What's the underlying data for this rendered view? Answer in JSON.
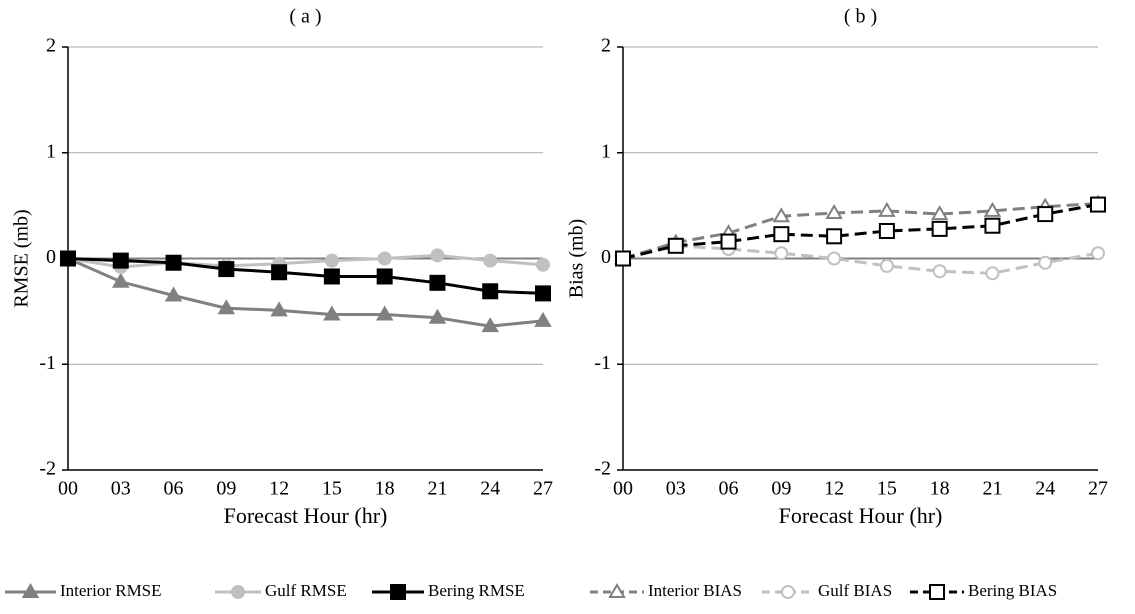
{
  "chart_data": [
    {
      "type": "line",
      "title": "( a )",
      "y_label": "RMSE (mb)",
      "x_label": "Forecast Hour (hr)",
      "categories": [
        "00",
        "03",
        "06",
        "09",
        "12",
        "15",
        "18",
        "21",
        "24",
        "27"
      ],
      "ylim": [
        -2,
        2
      ],
      "yticks": [
        -2,
        -1,
        0,
        1,
        2
      ],
      "grid": true,
      "series": [
        {
          "name": "Interior RMSE",
          "color": "#808080",
          "marker": "triangle",
          "filled": true,
          "dashed": false,
          "values": [
            0,
            -0.22,
            -0.35,
            -0.47,
            -0.49,
            -0.53,
            -0.53,
            -0.56,
            -0.64,
            -0.59
          ]
        },
        {
          "name": "Gulf RMSE",
          "color": "#c0c0c0",
          "marker": "circle",
          "filled": true,
          "dashed": false,
          "values": [
            0,
            -0.08,
            -0.04,
            -0.07,
            -0.05,
            -0.02,
            0.0,
            0.03,
            -0.02,
            -0.06
          ]
        },
        {
          "name": "Bering RMSE",
          "color": "#000000",
          "marker": "square",
          "filled": true,
          "dashed": false,
          "values": [
            0,
            -0.02,
            -0.04,
            -0.1,
            -0.13,
            -0.17,
            -0.17,
            -0.23,
            -0.31,
            -0.33
          ]
        }
      ]
    },
    {
      "type": "line",
      "title": "( b )",
      "y_label": "Bias (mb)",
      "x_label": "Forecast Hour (hr)",
      "categories": [
        "00",
        "03",
        "06",
        "09",
        "12",
        "15",
        "18",
        "21",
        "24",
        "27"
      ],
      "ylim": [
        -2,
        2
      ],
      "yticks": [
        -2,
        -1,
        0,
        1,
        2
      ],
      "grid": true,
      "series": [
        {
          "name": "Interior BIAS",
          "color": "#808080",
          "marker": "triangle",
          "filled": false,
          "dashed": true,
          "values": [
            0,
            0.15,
            0.24,
            0.4,
            0.43,
            0.45,
            0.42,
            0.45,
            0.49,
            0.52
          ]
        },
        {
          "name": "Gulf BIAS",
          "color": "#c0c0c0",
          "marker": "circle",
          "filled": false,
          "dashed": true,
          "values": [
            0,
            0.12,
            0.09,
            0.05,
            0.0,
            -0.07,
            -0.12,
            -0.14,
            -0.04,
            0.05
          ]
        },
        {
          "name": "Bering BIAS",
          "color": "#000000",
          "marker": "square",
          "filled": false,
          "dashed": true,
          "values": [
            0,
            0.12,
            0.16,
            0.23,
            0.21,
            0.26,
            0.28,
            0.31,
            0.42,
            0.51
          ]
        }
      ]
    }
  ]
}
